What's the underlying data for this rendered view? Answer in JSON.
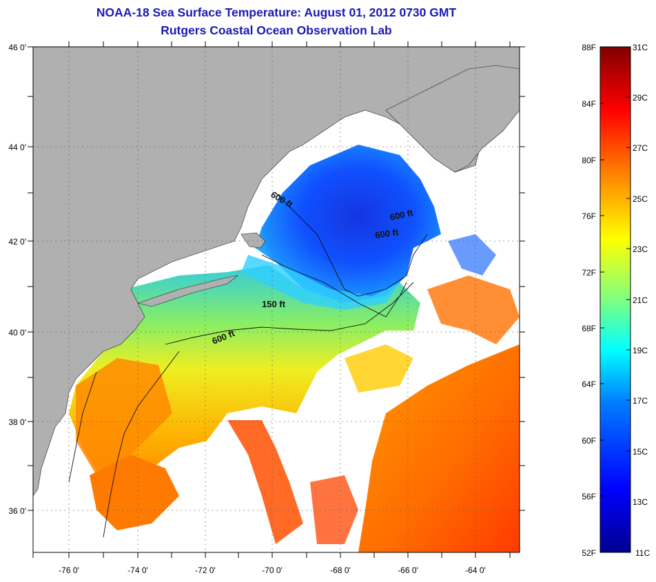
{
  "title": {
    "line1": "NOAA-18 Sea Surface Temperature:  August 01, 2012 0730 GMT",
    "line2": "Rutgers Coastal Ocean Observation Lab",
    "color": "#1a1ab4"
  },
  "map": {
    "lat_ticks": [
      "46 0'",
      "44 0'",
      "42 0'",
      "40 0'",
      "38 0'",
      "36 0'"
    ],
    "lon_ticks": [
      "-76 0'",
      "-74 0'",
      "-72 0'",
      "-70 0'",
      "-68 0'",
      "-66 0'",
      "-64 0'"
    ],
    "lat_range": [
      35,
      46
    ],
    "lon_range": [
      -77,
      -63
    ],
    "land_color": "#b0b0b0",
    "cloud_color": "#ffffff",
    "contour_labels": [
      "600 ft",
      "600 ft",
      "600 ft",
      "150 ft",
      "600 ft"
    ]
  },
  "colorbar": {
    "f_labels": [
      "88F",
      "84F",
      "80F",
      "76F",
      "72F",
      "68F",
      "64F",
      "60F",
      "56F",
      "52F"
    ],
    "c_labels": [
      "31C",
      "29C",
      "27C",
      "25C",
      "23C",
      "21C",
      "19C",
      "17C",
      "15C",
      "13C",
      "11C"
    ],
    "range_f": [
      52,
      88
    ],
    "range_c": [
      11,
      31
    ],
    "colors": [
      "#00008f",
      "#0000ff",
      "#0080ff",
      "#00ffff",
      "#80ff80",
      "#ffff00",
      "#ff8000",
      "#ff0000",
      "#800000"
    ]
  }
}
